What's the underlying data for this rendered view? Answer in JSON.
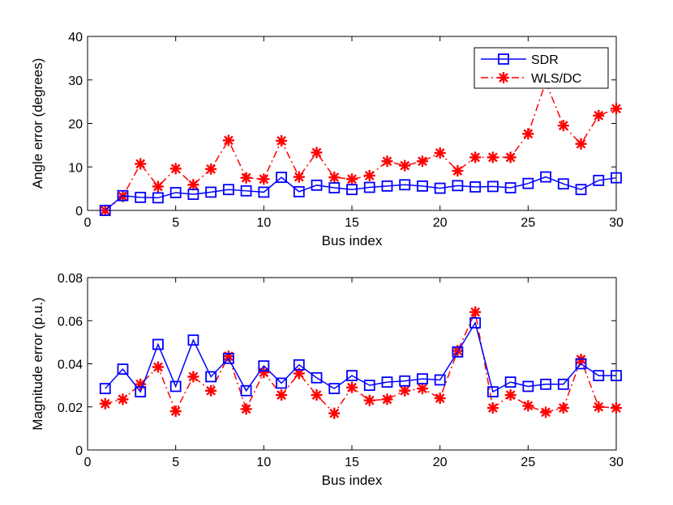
{
  "chart_data": [
    {
      "type": "line",
      "title": "",
      "xlabel": "Bus index",
      "ylabel": "Angle error (degrees)",
      "xlim": [
        0,
        30
      ],
      "ylim": [
        0,
        40
      ],
      "xticks": [
        "0",
        "5",
        "10",
        "15",
        "20",
        "25",
        "30"
      ],
      "yticks": [
        "0",
        "10",
        "20",
        "30",
        "40"
      ],
      "legend_position": "top-right",
      "x": [
        1,
        2,
        3,
        4,
        5,
        6,
        7,
        8,
        9,
        10,
        11,
        12,
        13,
        14,
        15,
        16,
        17,
        18,
        19,
        20,
        21,
        22,
        23,
        24,
        25,
        26,
        27,
        28,
        29,
        30
      ],
      "series": [
        {
          "name": "SDR",
          "color": "#0000ff",
          "marker": "square",
          "linestyle": "solid",
          "values": [
            0,
            3.4,
            3.0,
            2.9,
            4.1,
            3.7,
            4.2,
            4.8,
            4.5,
            4.2,
            7.6,
            4.3,
            5.8,
            5.2,
            4.8,
            5.3,
            5.6,
            5.9,
            5.6,
            5.1,
            5.7,
            5.4,
            5.5,
            5.2,
            6.2,
            7.7,
            6.1,
            4.8,
            6.9,
            7.5
          ]
        },
        {
          "name": "WLS/DC",
          "color": "#ff0000",
          "marker": "asterisk",
          "linestyle": "dashdot",
          "values": [
            0,
            3.2,
            10.7,
            5.5,
            9.6,
            5.9,
            9.5,
            16.1,
            7.5,
            7.2,
            16.0,
            7.7,
            13.3,
            7.6,
            7.2,
            8.0,
            11.3,
            10.3,
            11.3,
            13.2,
            9.1,
            12.2,
            12.2,
            12.2,
            17.6,
            29.5,
            19.5,
            15.3,
            21.8,
            23.4
          ]
        }
      ]
    },
    {
      "type": "line",
      "title": "",
      "xlabel": "Bus index",
      "ylabel": "Magnitude error (p.u.)",
      "xlim": [
        0,
        30
      ],
      "ylim": [
        0,
        0.08
      ],
      "xticks": [
        "0",
        "5",
        "10",
        "15",
        "20",
        "25",
        "30"
      ],
      "yticks": [
        "0",
        "0.02",
        "0.04",
        "0.06",
        "0.08"
      ],
      "x": [
        1,
        2,
        3,
        4,
        5,
        6,
        7,
        8,
        9,
        10,
        11,
        12,
        13,
        14,
        15,
        16,
        17,
        18,
        19,
        20,
        21,
        22,
        23,
        24,
        25,
        26,
        27,
        28,
        29,
        30
      ],
      "series": [
        {
          "name": "SDR",
          "color": "#0000ff",
          "marker": "square",
          "linestyle": "solid",
          "values": [
            0.0285,
            0.0375,
            0.027,
            0.049,
            0.0295,
            0.051,
            0.034,
            0.0425,
            0.0275,
            0.039,
            0.031,
            0.0395,
            0.0335,
            0.0285,
            0.0345,
            0.03,
            0.0315,
            0.032,
            0.033,
            0.0325,
            0.0455,
            0.059,
            0.027,
            0.0315,
            0.0295,
            0.0305,
            0.0305,
            0.04,
            0.0345,
            0.0345
          ]
        },
        {
          "name": "WLS/DC",
          "color": "#ff0000",
          "marker": "asterisk",
          "linestyle": "dashdot",
          "values": [
            0.0215,
            0.0235,
            0.0305,
            0.0385,
            0.018,
            0.034,
            0.0275,
            0.0435,
            0.019,
            0.036,
            0.0255,
            0.0355,
            0.0255,
            0.017,
            0.029,
            0.023,
            0.0235,
            0.0275,
            0.0285,
            0.024,
            0.046,
            0.064,
            0.0195,
            0.0255,
            0.0205,
            0.0175,
            0.0195,
            0.042,
            0.02,
            0.0195
          ]
        }
      ]
    }
  ]
}
